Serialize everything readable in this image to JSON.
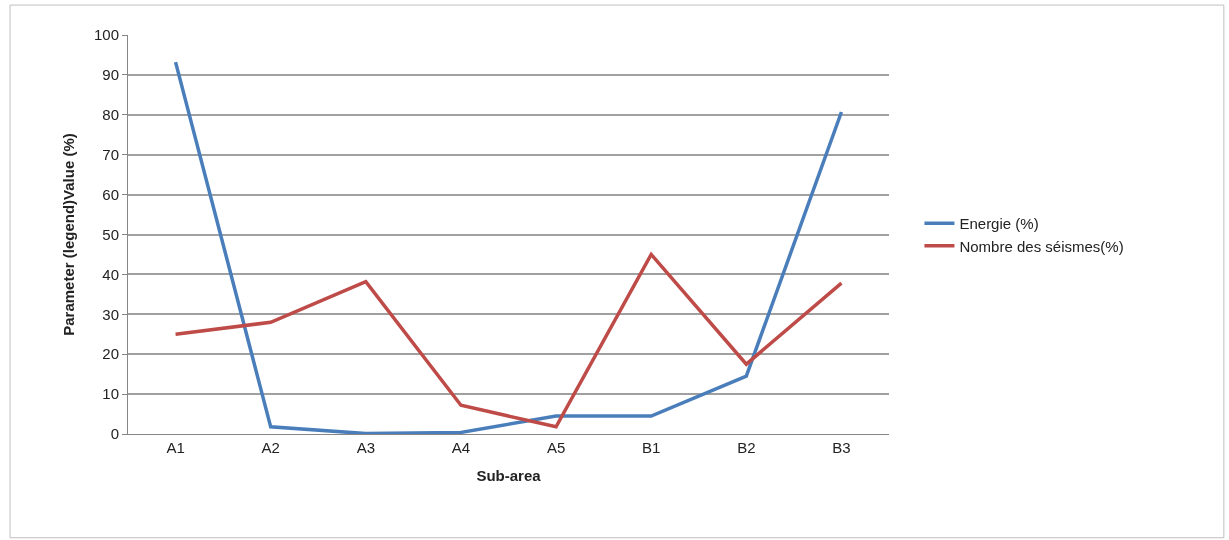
{
  "chart_data": {
    "type": "line",
    "xlabel": "Sub-area",
    "ylabel": "Parameter (legend)Value (%)",
    "categories": [
      "A1",
      "A2",
      "A3",
      "A4",
      "A5",
      "B1",
      "B2",
      "B3"
    ],
    "series": [
      {
        "name": "Energie (%)",
        "color": "#4a7ebb",
        "values": [
          93.2,
          1.8,
          0.1,
          0.4,
          4.5,
          4.5,
          14.5,
          80.7
        ]
      },
      {
        "name": "Nombre des séismes(%)",
        "color": "#be4b48",
        "values": [
          25,
          28,
          38.2,
          7.2,
          1.8,
          45,
          17.5,
          37.8
        ]
      }
    ],
    "ylim": [
      0,
      100
    ],
    "yticks": [
      0,
      10,
      20,
      30,
      40,
      50,
      60,
      70,
      80,
      90,
      100
    ],
    "grid": "y",
    "legend": "right",
    "marker": "none",
    "line_style": "solid"
  }
}
